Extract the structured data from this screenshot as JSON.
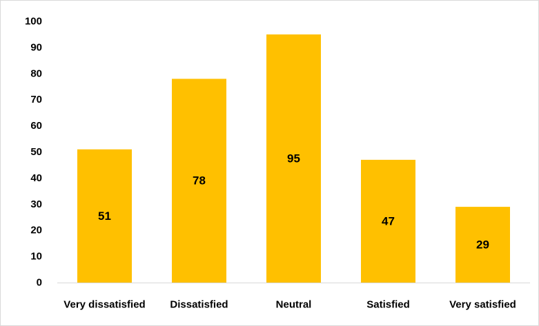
{
  "chart_data": {
    "type": "bar",
    "title": "",
    "xlabel": "",
    "ylabel": "",
    "categories": [
      "Very dissatisfied",
      "Dissatisfied",
      "Neutral",
      "Satisfied",
      "Very satisfied"
    ],
    "values": [
      51,
      78,
      95,
      47,
      29
    ],
    "data_labels": [
      "51",
      "78",
      "95",
      "47",
      "29"
    ],
    "ylim": [
      0,
      100
    ],
    "yticks": [
      0,
      10,
      20,
      30,
      40,
      50,
      60,
      70,
      80,
      90,
      100
    ],
    "ytick_labels": [
      "0",
      "10",
      "20",
      "30",
      "40",
      "50",
      "60",
      "70",
      "80",
      "90",
      "100"
    ],
    "grid": false,
    "legend": "none",
    "bar_color": "#FFC000",
    "axis_color": "#d9d9d9",
    "label_color": "#000000"
  }
}
